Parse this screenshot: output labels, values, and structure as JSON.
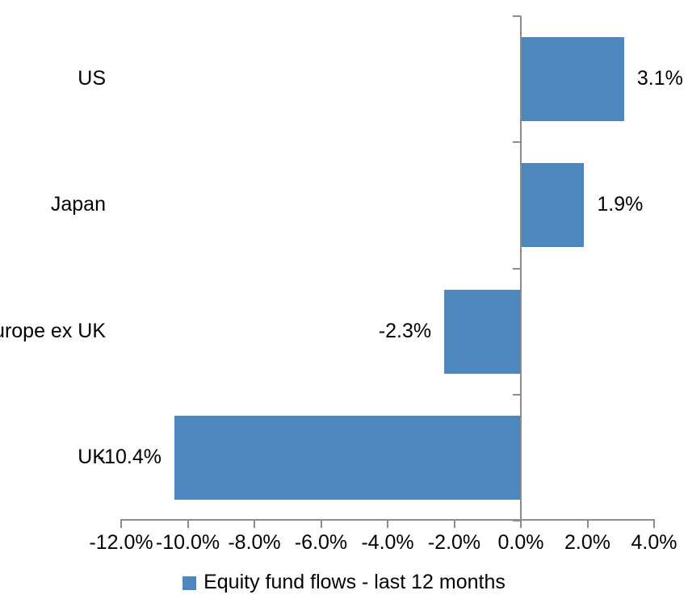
{
  "chart_data": {
    "type": "bar",
    "orientation": "horizontal",
    "title": "",
    "categories": [
      "US",
      "Japan",
      "Europe ex UK",
      "UK"
    ],
    "series": [
      {
        "name": "Equity fund flows - last 12 months",
        "values": [
          3.1,
          1.9,
          -2.3,
          -10.4
        ],
        "data_labels": [
          "3.1%",
          "1.9%",
          "-2.3%",
          "-10.4%"
        ],
        "color": "#4D87BC"
      }
    ],
    "x_axis": {
      "min": -12,
      "max": 4,
      "tick_step": 2,
      "ticks": [
        -12,
        -10,
        -8,
        -6,
        -4,
        -2,
        0,
        2,
        4
      ],
      "tick_labels": [
        "-12.0%",
        "-10.0%",
        "-8.0%",
        "-6.0%",
        "-4.0%",
        "-2.0%",
        "0.0%",
        "2.0%",
        "4.0%"
      ]
    },
    "legend": {
      "position": "bottom",
      "label": "Equity fund flows - last 12 months",
      "swatch_color": "#4D87BC"
    },
    "grid": false,
    "axis_color": "#8C8C8C",
    "text_color": "#000000",
    "background_color": "#FFFFFF"
  }
}
